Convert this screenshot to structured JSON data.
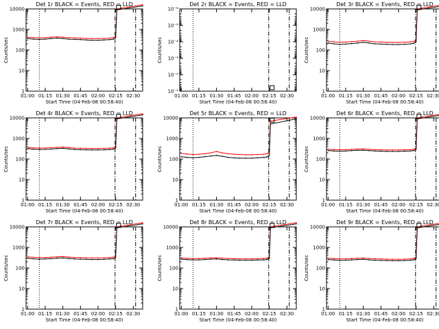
{
  "panels": [
    {
      "title": "Det 1r BLACK = Events, RED = LLD",
      "ylabel": "Counts/sec",
      "xlabel": "Start Time (04-Feb-08 00:58:40)",
      "log_min": 1,
      "log_max": 10000,
      "y_ticks": [
        {
          "v": 1,
          "label": "1"
        },
        {
          "v": 10,
          "label": "10"
        },
        {
          "v": 100,
          "label": "100"
        },
        {
          "v": 1000,
          "label": "1000"
        },
        {
          "v": 10000,
          "label": "10000"
        }
      ],
      "black": [
        360,
        340,
        330,
        340,
        360,
        380,
        360,
        340,
        330,
        320,
        310,
        300,
        300,
        310,
        320,
        340,
        400,
        9000,
        14000
      ],
      "red": [
        420,
        400,
        390,
        400,
        420,
        440,
        420,
        400,
        390,
        380,
        370,
        360,
        360,
        370,
        380,
        400,
        460,
        10000,
        16000
      ]
    },
    {
      "title": "Det 2r BLACK = Events, RED = LLD",
      "ylabel": "Counts/sec",
      "xlabel": "Start Time (04-Feb-08 00:58:40)",
      "log_min": 0.1,
      "log_max": 1e-06,
      "y_ticks": [
        {
          "v": 0.1,
          "label": "10⁻¹"
        },
        {
          "v": 0.01,
          "label": "10⁻²"
        },
        {
          "v": 0.001,
          "label": "10⁻³"
        },
        {
          "v": 0.0001,
          "label": "10⁻⁴"
        },
        {
          "v": 1e-05,
          "label": "10⁻⁵"
        },
        {
          "v": 1e-06,
          "label": "10⁻⁶"
        }
      ],
      "black": [],
      "red": []
    },
    {
      "title": "Det 3r BLACK = Events, RED = LLD",
      "ylabel": "Counts/sec",
      "xlabel": "Start Time (04-Feb-08 00:58:40)",
      "log_min": 1,
      "log_max": 10000,
      "y_ticks": [
        {
          "v": 1,
          "label": "1"
        },
        {
          "v": 10,
          "label": "10"
        },
        {
          "v": 100,
          "label": "100"
        },
        {
          "v": 1000,
          "label": "1000"
        },
        {
          "v": 10000,
          "label": "10000"
        }
      ],
      "black": [
        220,
        200,
        190,
        195,
        205,
        220,
        240,
        220,
        200,
        195,
        190,
        185,
        185,
        190,
        200,
        210,
        260,
        9000,
        14000
      ],
      "red": [
        270,
        250,
        240,
        245,
        255,
        270,
        290,
        270,
        250,
        245,
        240,
        235,
        235,
        240,
        250,
        260,
        320,
        10000,
        16000
      ]
    },
    {
      "title": "Det 4r BLACK = Events, RED = LLD",
      "ylabel": "Counts/sec",
      "xlabel": "Start Time (04-Feb-08 00:58:40)",
      "log_min": 1,
      "log_max": 10000,
      "y_ticks": [
        {
          "v": 1,
          "label": "1"
        },
        {
          "v": 10,
          "label": "10"
        },
        {
          "v": 100,
          "label": "100"
        },
        {
          "v": 1000,
          "label": "1000"
        },
        {
          "v": 10000,
          "label": "10000"
        }
      ],
      "black": [
        320,
        300,
        290,
        295,
        305,
        320,
        330,
        310,
        290,
        285,
        280,
        275,
        275,
        280,
        290,
        300,
        350,
        9000,
        14000
      ],
      "red": [
        370,
        350,
        340,
        345,
        355,
        370,
        380,
        360,
        340,
        335,
        330,
        325,
        325,
        330,
        340,
        350,
        410,
        10000,
        16000
      ]
    },
    {
      "title": "Det 5r BLACK = Events, RED = LLD",
      "ylabel": "Counts/sec",
      "xlabel": "Start Time (04-Feb-08 00:58:40)",
      "log_min": 1,
      "log_max": 10000,
      "y_ticks": [
        {
          "v": 1,
          "label": "1"
        },
        {
          "v": 10,
          "label": "10"
        },
        {
          "v": 100,
          "label": "100"
        },
        {
          "v": 1000,
          "label": "1000"
        },
        {
          "v": 10000,
          "label": "10000"
        }
      ],
      "black": [
        130,
        120,
        115,
        120,
        130,
        140,
        150,
        135,
        120,
        115,
        110,
        110,
        110,
        115,
        120,
        125,
        150,
        5000,
        9000
      ],
      "red": [
        190,
        175,
        165,
        170,
        180,
        200,
        230,
        200,
        180,
        170,
        165,
        160,
        160,
        165,
        170,
        180,
        220,
        7000,
        11000
      ]
    },
    {
      "title": "Det 6r BLACK = Events, RED = LLD",
      "ylabel": "Counts/sec",
      "xlabel": "Start Time (04-Feb-08 00:58:40)",
      "log_min": 1,
      "log_max": 10000,
      "y_ticks": [
        {
          "v": 1,
          "label": "1"
        },
        {
          "v": 10,
          "label": "10"
        },
        {
          "v": 100,
          "label": "100"
        },
        {
          "v": 1000,
          "label": "1000"
        },
        {
          "v": 10000,
          "label": "10000"
        }
      ],
      "black": [
        260,
        245,
        240,
        245,
        255,
        265,
        270,
        255,
        245,
        240,
        235,
        235,
        235,
        240,
        245,
        255,
        300,
        9000,
        14000
      ],
      "red": [
        300,
        285,
        280,
        285,
        295,
        305,
        310,
        295,
        285,
        280,
        275,
        275,
        275,
        280,
        285,
        295,
        350,
        10000,
        16000
      ]
    },
    {
      "title": "Det 7r BLACK = Events, RED = LLD",
      "ylabel": "Counts/sec",
      "xlabel": "Start Time (04-Feb-08 00:58:40)",
      "log_min": 1,
      "log_max": 10000,
      "y_ticks": [
        {
          "v": 1,
          "label": "1"
        },
        {
          "v": 10,
          "label": "10"
        },
        {
          "v": 100,
          "label": "100"
        },
        {
          "v": 1000,
          "label": "1000"
        },
        {
          "v": 10000,
          "label": "10000"
        }
      ],
      "black": [
        300,
        280,
        270,
        275,
        285,
        300,
        310,
        290,
        275,
        270,
        265,
        260,
        260,
        265,
        275,
        285,
        330,
        9000,
        14000
      ],
      "red": [
        350,
        330,
        320,
        325,
        335,
        350,
        360,
        340,
        325,
        320,
        315,
        310,
        310,
        315,
        325,
        335,
        390,
        10000,
        16000
      ]
    },
    {
      "title": "Det 8r BLACK = Events, RED = LLD",
      "ylabel": "Counts/sec",
      "xlabel": "Start Time (04-Feb-08 00:58:40)",
      "log_min": 1,
      "log_max": 10000,
      "y_ticks": [
        {
          "v": 1,
          "label": "1"
        },
        {
          "v": 10,
          "label": "10"
        },
        {
          "v": 100,
          "label": "100"
        },
        {
          "v": 1000,
          "label": "1000"
        },
        {
          "v": 10000,
          "label": "10000"
        }
      ],
      "black": [
        270,
        255,
        245,
        250,
        260,
        270,
        275,
        260,
        250,
        245,
        240,
        240,
        240,
        245,
        250,
        260,
        300,
        9000,
        14000
      ],
      "red": [
        310,
        295,
        285,
        290,
        300,
        310,
        315,
        300,
        290,
        285,
        280,
        280,
        280,
        285,
        290,
        300,
        350,
        10000,
        16000
      ]
    },
    {
      "title": "Det 9r BLACK = Events, RED = LLD",
      "ylabel": "Counts/sec",
      "xlabel": "Start Time (04-Feb-08 00:58:40)",
      "log_min": 1,
      "log_max": 10000,
      "y_ticks": [
        {
          "v": 1,
          "label": "1"
        },
        {
          "v": 10,
          "label": "10"
        },
        {
          "v": 100,
          "label": "100"
        },
        {
          "v": 1000,
          "label": "1000"
        },
        {
          "v": 10000,
          "label": "10000"
        }
      ],
      "black": [
        260,
        245,
        235,
        240,
        250,
        260,
        265,
        250,
        240,
        235,
        230,
        225,
        225,
        230,
        240,
        250,
        290,
        9000,
        14000
      ],
      "red": [
        300,
        285,
        275,
        280,
        290,
        300,
        305,
        290,
        280,
        275,
        270,
        265,
        265,
        270,
        280,
        290,
        340,
        10000,
        16000
      ]
    }
  ],
  "chart_data": {
    "type": "line",
    "x_tick_labels": [
      "01:00",
      "01:15",
      "01:30",
      "01:45",
      "02:00",
      "02:15",
      "02:30"
    ],
    "x_tick_minutes": [
      60,
      75,
      90,
      105,
      120,
      135,
      150
    ],
    "x_range_minutes": [
      58.67,
      158
    ],
    "sample_minutes": [
      60,
      65,
      70,
      75,
      80,
      85,
      90,
      95,
      100,
      105,
      110,
      115,
      120,
      125,
      130,
      133,
      135,
      136,
      158
    ],
    "vertical_markers": [
      {
        "minute": 70,
        "style": "dotted"
      },
      {
        "minute": 134.5,
        "style": "dash-dot"
      },
      {
        "minute": 152,
        "style": "dash-dot"
      }
    ],
    "series": [
      {
        "name": "BLACK = Events",
        "color": "#000000"
      },
      {
        "name": "RED = LLD",
        "color": "#ff0000"
      }
    ],
    "y_scale": "log",
    "grid": false
  }
}
